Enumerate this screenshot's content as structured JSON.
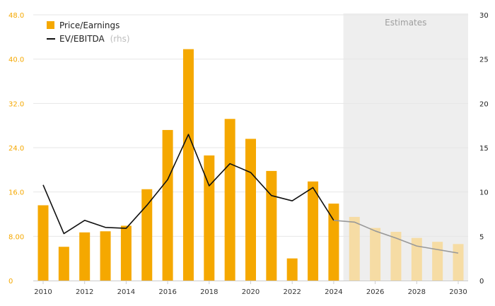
{
  "chart_data": {
    "type": "bar",
    "x": [
      2010,
      2011,
      2012,
      2013,
      2014,
      2015,
      2016,
      2017,
      2018,
      2019,
      2020,
      2021,
      2022,
      2023,
      2024,
      2025,
      2026,
      2027,
      2028,
      2029,
      2030
    ],
    "x_tick_labels": [
      "2010",
      "2012",
      "2014",
      "2016",
      "2018",
      "2020",
      "2022",
      "2024",
      "2026",
      "2028",
      "2030"
    ],
    "estimates_from": 2025,
    "estimates_label": "Estimates",
    "series": [
      {
        "name": "Price/Earnings",
        "type": "bar",
        "axis": "left",
        "color": "#f5a800",
        "estimate_color": "#f6dca4",
        "values": [
          13.6,
          6.1,
          8.7,
          8.9,
          9.9,
          16.5,
          27.2,
          41.8,
          22.6,
          29.2,
          25.6,
          19.8,
          4.0,
          17.9,
          13.9,
          11.5,
          9.5,
          8.8,
          7.7,
          7.0,
          6.6
        ]
      },
      {
        "name": "EV/EBITDA",
        "name_suffix": "(rhs)",
        "type": "line",
        "axis": "right",
        "color": "#111111",
        "estimate_color": "#999999",
        "values": [
          10.8,
          5.3,
          6.8,
          6.0,
          5.9,
          8.5,
          11.4,
          16.5,
          10.7,
          13.2,
          12.2,
          9.6,
          9.0,
          10.5,
          6.8,
          6.6,
          5.6,
          4.8,
          3.9,
          3.5,
          3.1
        ]
      }
    ],
    "y_left": {
      "range": [
        0,
        48
      ],
      "ticks": [
        "0",
        "8.00",
        "16.0",
        "24.0",
        "32.0",
        "40.0",
        "48.0"
      ]
    },
    "y_right": {
      "range": [
        0,
        30
      ],
      "ticks": [
        "0",
        "5",
        "10",
        "15",
        "20",
        "25",
        "30"
      ]
    },
    "grid": true,
    "legend_position": "top-left"
  }
}
